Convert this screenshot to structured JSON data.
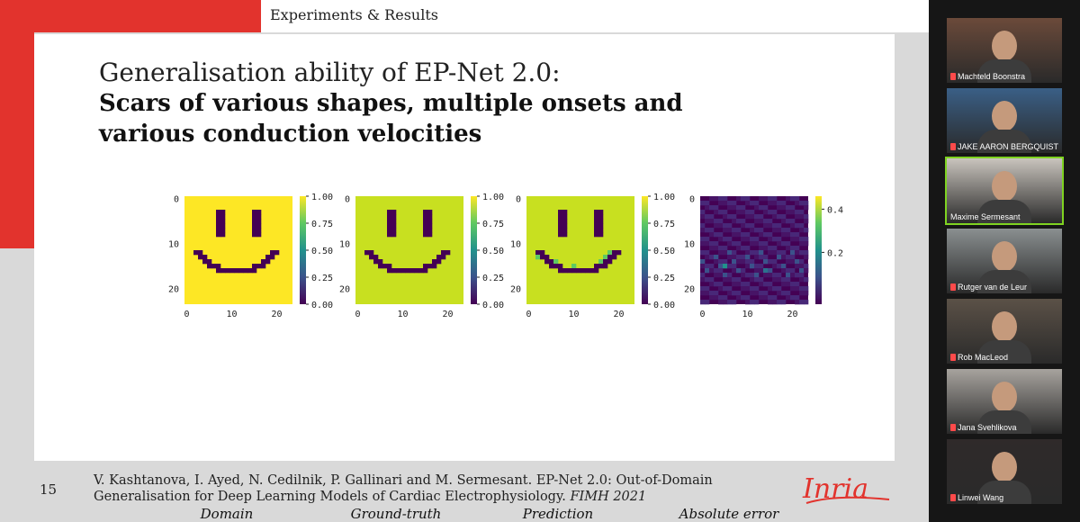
{
  "header": {
    "section": "Experiments & Results"
  },
  "slide": {
    "title_line1": "Generalisation ability of EP-Net 2.0:",
    "title_line2": "Scars of various shapes, multiple onsets and various conduction velocities",
    "panels": [
      {
        "caption": "Domain",
        "colorbar_ticks": [
          "1.00",
          "0.75",
          "0.50",
          "0.25",
          "0.00"
        ]
      },
      {
        "caption": "Ground-truth",
        "colorbar_ticks": [
          "1.00",
          "0.75",
          "0.50",
          "0.25",
          "0.00"
        ]
      },
      {
        "caption": "Prediction",
        "colorbar_ticks": [
          "1.00",
          "0.75",
          "0.50",
          "0.25",
          "0.00"
        ]
      },
      {
        "caption": "Absolute error",
        "colorbar_ticks": [
          "0.4",
          "0.2"
        ]
      }
    ],
    "y_ticks": [
      "0",
      "10",
      "20"
    ],
    "x_ticks": [
      "0",
      "10",
      "20"
    ],
    "page_number": "15",
    "citation_main": "V. Kashtanova, I. Ayed, N. Cedilnik, P. Gallinari and M. Sermesant. EP-Net 2.0: Out-of-Domain Generalisation for Deep Learning Models of Cardiac Electrophysiology.",
    "citation_venue": "FIMH 2021",
    "logo_text": "Inria"
  },
  "participants": [
    {
      "name": "Machteld Boonstra",
      "muted": true
    },
    {
      "name": "JAKE AARON BERGQUIST",
      "muted": true
    },
    {
      "name": "Maxime Sermesant",
      "muted": false,
      "active": true
    },
    {
      "name": "Rutger van de Leur",
      "muted": true
    },
    {
      "name": "Rob MacLeod",
      "muted": true
    },
    {
      "name": "Jana Svehlikova",
      "muted": true
    },
    {
      "name": "Linwei Wang",
      "muted": true
    }
  ],
  "colors": {
    "accent_red": "#e2332d",
    "viridis_yellow": "#fde725",
    "viridis_purple": "#440154",
    "active_speaker": "#7fd321"
  }
}
